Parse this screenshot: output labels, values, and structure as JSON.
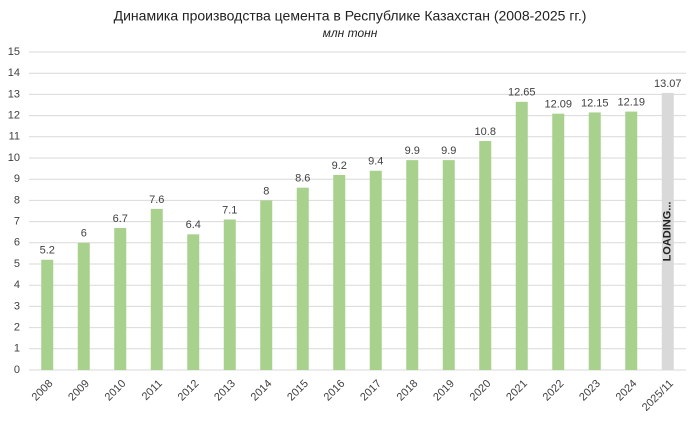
{
  "chart_data": {
    "type": "bar",
    "title": "Динамика производства цемента в Республике Казахстан (2008-2025 гг.)",
    "subtitle": "млн тонн",
    "categories": [
      "2008",
      "2009",
      "2010",
      "2011",
      "2012",
      "2013",
      "2014",
      "2015",
      "2016",
      "2017",
      "2018",
      "2019",
      "2020",
      "2021",
      "2022",
      "2023",
      "2024",
      "2025/11"
    ],
    "values": [
      5.2,
      6,
      6.7,
      7.6,
      6.4,
      7.1,
      8,
      8.6,
      9.2,
      9.4,
      9.9,
      9.9,
      10.8,
      12.65,
      12.09,
      12.15,
      12.19,
      13.07
    ],
    "colors": [
      "#a9d18e",
      "#a9d18e",
      "#a9d18e",
      "#a9d18e",
      "#a9d18e",
      "#a9d18e",
      "#a9d18e",
      "#a9d18e",
      "#a9d18e",
      "#a9d18e",
      "#a9d18e",
      "#a9d18e",
      "#a9d18e",
      "#a9d18e",
      "#a9d18e",
      "#a9d18e",
      "#a9d18e",
      "#d9d9d9"
    ],
    "annotation": "LOADING...",
    "ylim": [
      0,
      15
    ],
    "yticks": [
      0,
      1,
      2,
      3,
      4,
      5,
      6,
      7,
      8,
      9,
      10,
      11,
      12,
      13,
      14,
      15
    ],
    "grid": true
  }
}
